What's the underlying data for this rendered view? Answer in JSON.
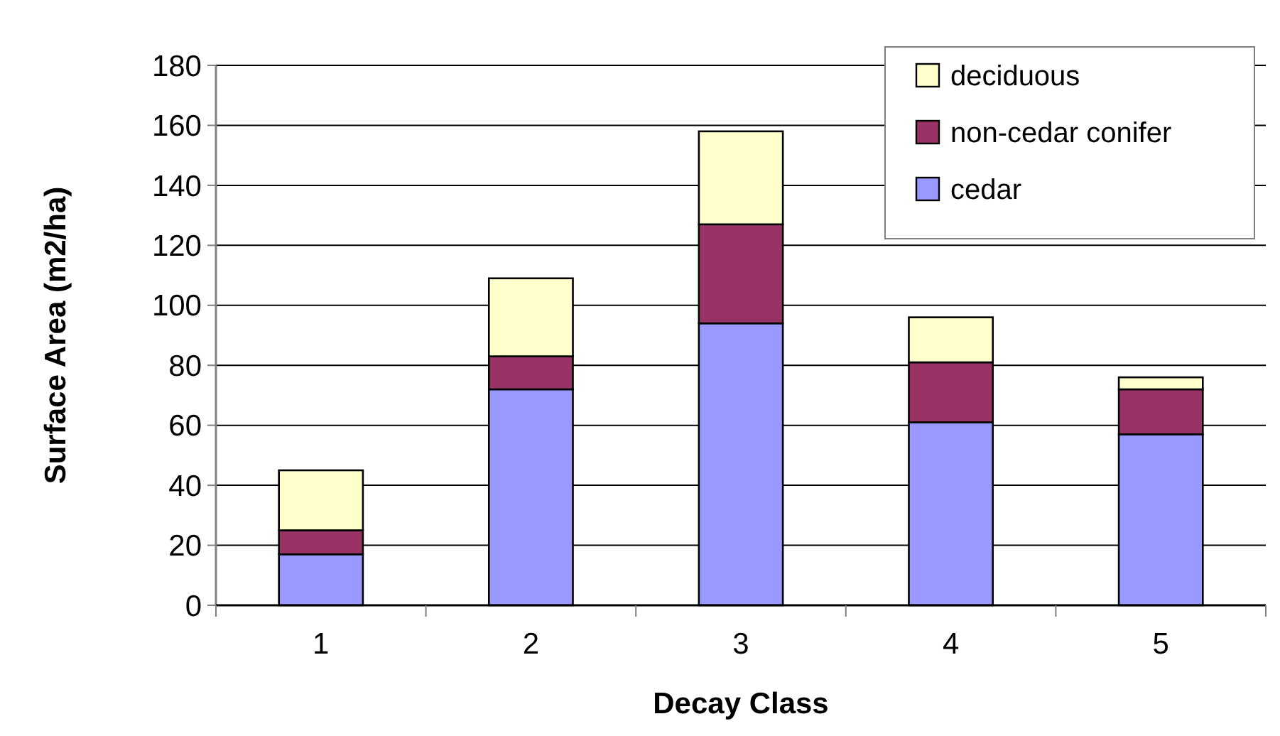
{
  "chart_data": {
    "type": "bar",
    "stacked": true,
    "xlabel": "Decay Class",
    "ylabel": "Surface Area (m2/ha)",
    "categories": [
      "1",
      "2",
      "3",
      "4",
      "5"
    ],
    "series": [
      {
        "name": "cedar",
        "color": "#9999ff",
        "values": [
          17,
          72,
          94,
          61,
          57
        ]
      },
      {
        "name": "non-cedar conifer",
        "color": "#993366",
        "values": [
          8,
          11,
          33,
          20,
          15
        ]
      },
      {
        "name": "deciduous",
        "color": "#ffffcc",
        "values": [
          20,
          26,
          31,
          15,
          4
        ]
      }
    ],
    "ylim": [
      0,
      180
    ],
    "yticks": [
      0,
      20,
      40,
      60,
      80,
      100,
      120,
      140,
      160,
      180
    ],
    "grid": "y",
    "legend": "top right"
  }
}
